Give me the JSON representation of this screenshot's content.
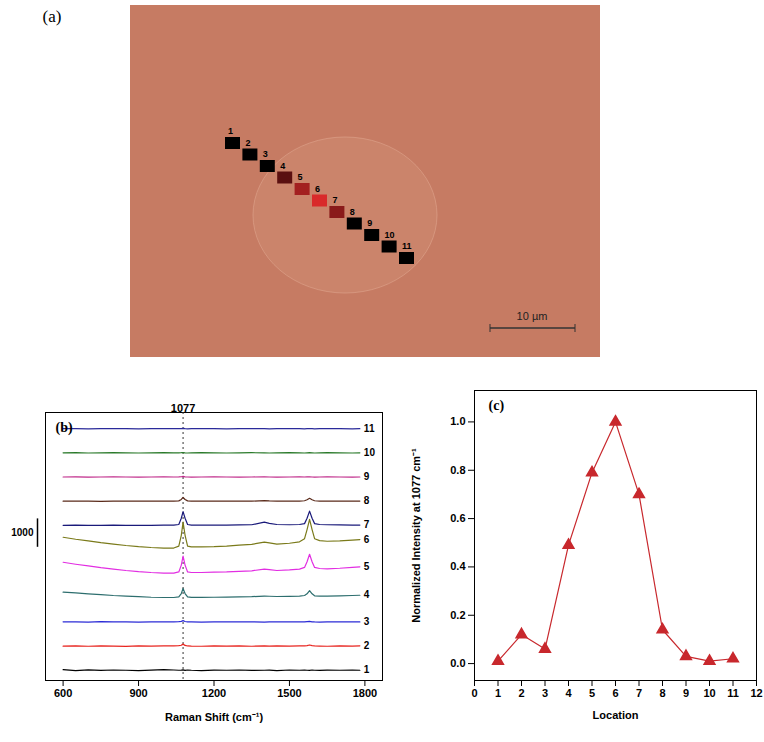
{
  "chart_data": [
    {
      "type": "image",
      "panel_label": "(a)",
      "locations": [
        1,
        2,
        3,
        4,
        5,
        6,
        7,
        8,
        9,
        10,
        11
      ],
      "colors": [
        "#000000",
        "#000000",
        "#000000",
        "#5a1010",
        "#a32020",
        "#d92a2a",
        "#8a1a1a",
        "#000000",
        "#000000",
        "#000000",
        "#000000"
      ],
      "scale_bar": {
        "value": 10,
        "label": "10 µm"
      }
    },
    {
      "type": "line",
      "panel_label": "(b)",
      "x_label": "Raman Shift (cm⁻¹)",
      "x": [
        600,
        650,
        700,
        750,
        800,
        850,
        900,
        950,
        1000,
        1040,
        1060,
        1070,
        1077,
        1085,
        1095,
        1110,
        1150,
        1200,
        1250,
        1300,
        1350,
        1400,
        1420,
        1450,
        1500,
        1540,
        1560,
        1570,
        1580,
        1590,
        1600,
        1620,
        1650,
        1700,
        1750,
        1780
      ],
      "xlim": [
        530,
        1870
      ],
      "xticks": [
        600,
        900,
        1200,
        1500,
        1800
      ],
      "ylim": [
        -360,
        9070
      ],
      "yticks": [],
      "tick_labels": "x",
      "grid": false,
      "annotations": [
        {
          "x": 1077,
          "label": "1077"
        }
      ],
      "scale_bar": {
        "value": 1000,
        "label": "1000"
      },
      "series": [
        {
          "name": "1",
          "color": "#000000",
          "values": [
            20,
            -10,
            15,
            -5,
            10,
            0,
            -10,
            5,
            20,
            10,
            0,
            5,
            15,
            -5,
            10,
            0,
            -10,
            5,
            0,
            10,
            -5,
            0,
            5,
            -10,
            10,
            0,
            5,
            0,
            -5,
            10,
            0,
            -5,
            5,
            0,
            10,
            0
          ]
        },
        {
          "name": "2",
          "color": "#e8251f",
          "values": [
            850,
            860,
            845,
            855,
            850,
            840,
            855,
            850,
            860,
            855,
            865,
            880,
            920,
            875,
            855,
            850,
            845,
            860,
            850,
            855,
            845,
            860,
            850,
            855,
            850,
            855,
            860,
            870,
            890,
            865,
            855,
            850,
            845,
            855,
            850,
            860
          ]
        },
        {
          "name": "3",
          "color": "#2b2bd6",
          "values": [
            1705,
            1700,
            1695,
            1710,
            1700,
            1705,
            1695,
            1700,
            1705,
            1700,
            1710,
            1720,
            1745,
            1715,
            1700,
            1705,
            1695,
            1700,
            1705,
            1700,
            1705,
            1695,
            1700,
            1705,
            1700,
            1705,
            1700,
            1710,
            1720,
            1705,
            1700,
            1695,
            1705,
            1700,
            1705,
            1700
          ]
        },
        {
          "name": "4",
          "color": "#2d6e6e",
          "values": [
            2750,
            2720,
            2690,
            2660,
            2630,
            2610,
            2590,
            2570,
            2560,
            2560,
            2580,
            2700,
            2880,
            2700,
            2580,
            2565,
            2565,
            2570,
            2575,
            2580,
            2590,
            2610,
            2605,
            2595,
            2600,
            2610,
            2630,
            2690,
            2800,
            2690,
            2620,
            2610,
            2610,
            2620,
            2630,
            2640
          ]
        },
        {
          "name": "5",
          "color": "#e22ee2",
          "values": [
            3800,
            3730,
            3670,
            3610,
            3560,
            3510,
            3470,
            3440,
            3420,
            3420,
            3460,
            3700,
            4020,
            3700,
            3460,
            3440,
            3440,
            3450,
            3460,
            3480,
            3500,
            3560,
            3540,
            3510,
            3530,
            3560,
            3620,
            3820,
            4080,
            3820,
            3620,
            3580,
            3570,
            3590,
            3620,
            3640
          ]
        },
        {
          "name": "6",
          "color": "#7a7a1a",
          "values": [
            4680,
            4610,
            4550,
            4490,
            4440,
            4390,
            4350,
            4320,
            4300,
            4300,
            4370,
            4750,
            5210,
            4750,
            4370,
            4340,
            4340,
            4350,
            4370,
            4400,
            4430,
            4510,
            4480,
            4440,
            4470,
            4520,
            4630,
            4950,
            5310,
            4950,
            4630,
            4560,
            4540,
            4550,
            4580,
            4600
          ]
        },
        {
          "name": "7",
          "color": "#1a1a7a",
          "values": [
            5100,
            5105,
            5095,
            5100,
            5105,
            5100,
            5095,
            5100,
            5105,
            5105,
            5130,
            5350,
            5580,
            5350,
            5130,
            5110,
            5105,
            5110,
            5110,
            5115,
            5120,
            5210,
            5170,
            5130,
            5120,
            5130,
            5160,
            5350,
            5600,
            5350,
            5160,
            5130,
            5120,
            5115,
            5110,
            5110
          ]
        },
        {
          "name": "8",
          "color": "#5a2a1a",
          "values": [
            5950,
            5955,
            5950,
            5945,
            5950,
            5955,
            5950,
            5950,
            5955,
            5950,
            5960,
            6010,
            6080,
            6010,
            5960,
            5955,
            5950,
            5955,
            5950,
            5955,
            5950,
            5970,
            5960,
            5955,
            5950,
            5955,
            5965,
            6000,
            6050,
            6000,
            5965,
            5955,
            5950,
            5955,
            5950,
            5955
          ]
        },
        {
          "name": "9",
          "color": "#c02a8a",
          "values": [
            6800,
            6805,
            6795,
            6800,
            6805,
            6800,
            6795,
            6800,
            6805,
            6800,
            6805,
            6810,
            6820,
            6805,
            6800,
            6795,
            6800,
            6805,
            6800,
            6795,
            6800,
            6805,
            6800,
            6795,
            6800,
            6805,
            6800,
            6805,
            6810,
            6800,
            6795,
            6800,
            6805,
            6800,
            6795,
            6800
          ]
        },
        {
          "name": "10",
          "color": "#2a7a2a",
          "values": [
            7650,
            7655,
            7645,
            7650,
            7655,
            7650,
            7645,
            7650,
            7655,
            7650,
            7650,
            7655,
            7660,
            7650,
            7645,
            7650,
            7655,
            7650,
            7645,
            7650,
            7655,
            7650,
            7645,
            7650,
            7655,
            7650,
            7645,
            7650,
            7655,
            7650,
            7645,
            7650,
            7655,
            7650,
            7645,
            7650
          ]
        },
        {
          "name": "11",
          "color": "#2a2a9a",
          "values": [
            8500,
            8505,
            8495,
            8500,
            8505,
            8500,
            8495,
            8500,
            8505,
            8500,
            8500,
            8505,
            8510,
            8500,
            8495,
            8500,
            8505,
            8500,
            8495,
            8500,
            8505,
            8500,
            8495,
            8500,
            8505,
            8500,
            8495,
            8500,
            8505,
            8500,
            8495,
            8500,
            8505,
            8500,
            8495,
            8500
          ]
        }
      ]
    },
    {
      "type": "line",
      "panel_label": "(c)",
      "x_label": "Location",
      "y_label": "Normalized Intensity at 1077 cm⁻¹",
      "x": [
        1,
        2,
        3,
        4,
        5,
        6,
        7,
        8,
        9,
        10,
        11
      ],
      "values": [
        0.01,
        0.12,
        0.06,
        0.49,
        0.79,
        1.0,
        0.7,
        0.14,
        0.03,
        0.01,
        0.02
      ],
      "color": "#c8282d",
      "marker": "triangle",
      "line_style": "solid",
      "xlim": [
        0,
        12
      ],
      "xticks": [
        0,
        1,
        2,
        3,
        4,
        5,
        6,
        7,
        8,
        9,
        10,
        11,
        12
      ],
      "ylim": [
        -0.07,
        1.13
      ],
      "yticks": [
        {
          "value": 0,
          "label": "0.0"
        },
        0.2,
        0.4,
        0.6,
        0.8,
        {
          "value": 1,
          "label": "1.0"
        }
      ],
      "grid": false
    }
  ]
}
